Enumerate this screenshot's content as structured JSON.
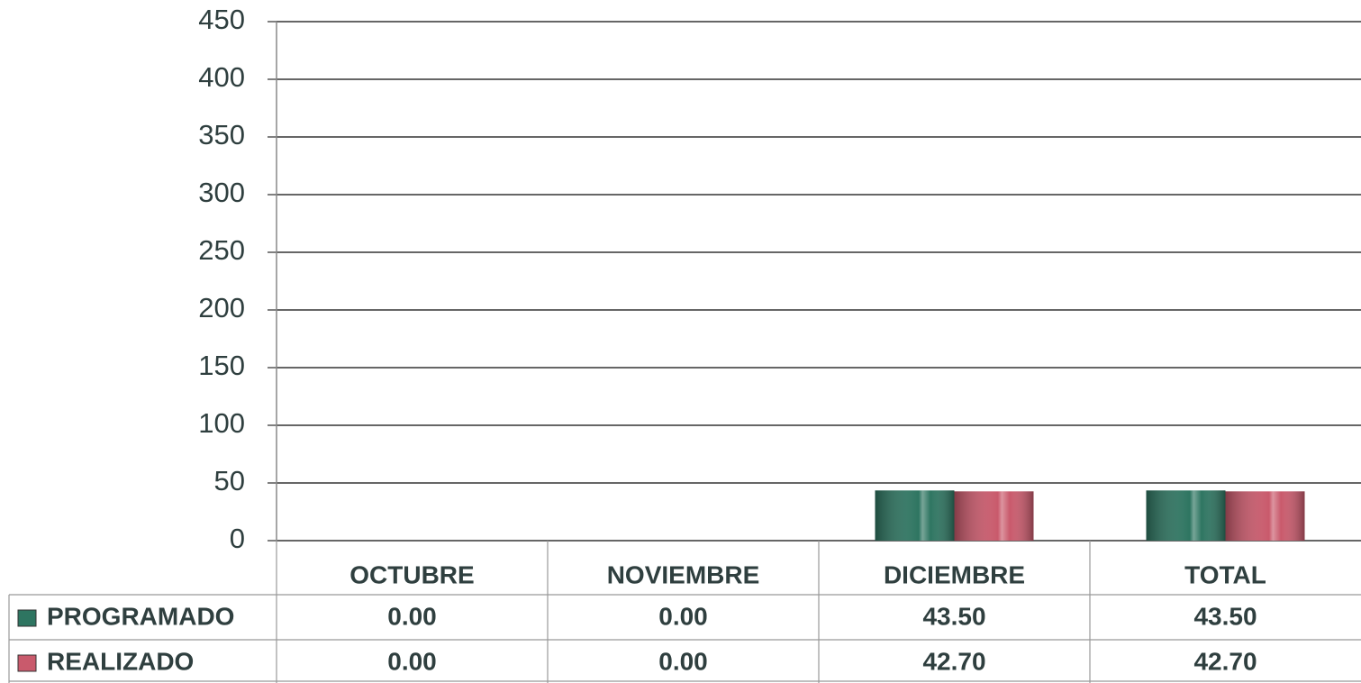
{
  "chart_data": {
    "type": "bar",
    "categories": [
      "OCTUBRE",
      "NOVIEMBRE",
      "DICIEMBRE",
      "TOTAL"
    ],
    "series": [
      {
        "name": "PROGRAMADO",
        "color": "#2e7561",
        "values": [
          0,
          0,
          43.5,
          43.5
        ],
        "value_labels": [
          "0.00",
          "0.00",
          "43.50",
          "43.50"
        ]
      },
      {
        "name": "REALIZADO",
        "color": "#c95a6c",
        "values": [
          0,
          0,
          42.7,
          42.7
        ],
        "value_labels": [
          "0.00",
          "0.00",
          "42.70",
          "42.70"
        ]
      }
    ],
    "ylim": [
      0,
      450
    ],
    "yticks": [
      0,
      50,
      100,
      150,
      200,
      250,
      300,
      350,
      400,
      450
    ],
    "grid": true
  }
}
